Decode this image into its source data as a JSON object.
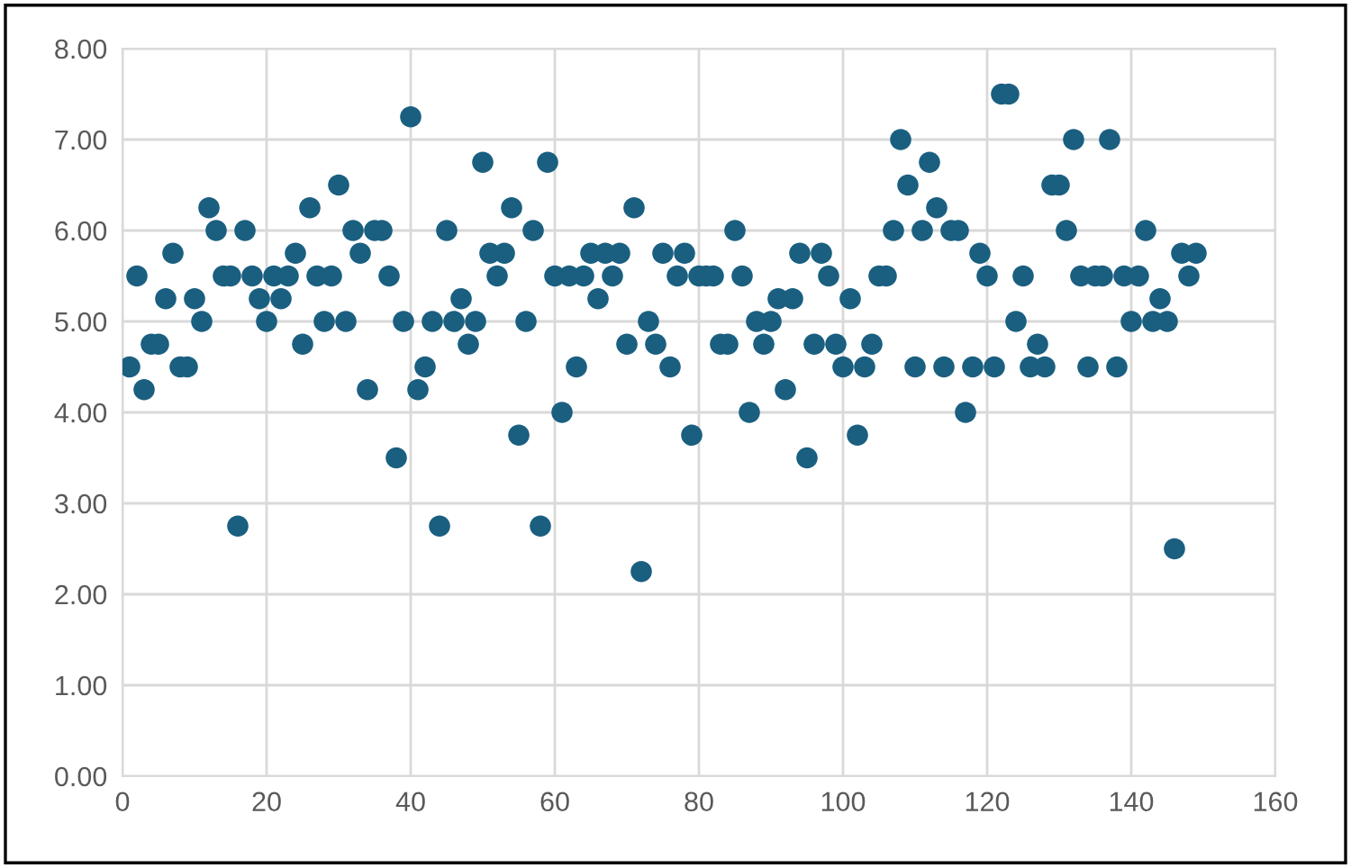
{
  "chart_data": {
    "type": "scatter",
    "x": [
      1,
      2,
      3,
      4,
      5,
      6,
      7,
      8,
      9,
      10,
      11,
      12,
      13,
      14,
      15,
      16,
      17,
      18,
      19,
      20,
      21,
      22,
      23,
      24,
      25,
      26,
      27,
      28,
      29,
      30,
      31,
      32,
      33,
      34,
      35,
      36,
      37,
      38,
      39,
      40,
      41,
      42,
      43,
      44,
      45,
      46,
      47,
      48,
      49,
      50,
      51,
      52,
      53,
      54,
      55,
      56,
      57,
      58,
      59,
      60,
      61,
      62,
      63,
      64,
      65,
      66,
      67,
      68,
      69,
      70,
      71,
      72,
      73,
      74,
      75,
      76,
      77,
      78,
      79,
      80,
      81,
      82,
      83,
      84,
      85,
      86,
      87,
      88,
      89,
      90,
      91,
      92,
      93,
      94,
      95,
      96,
      97,
      98,
      99,
      100,
      101,
      102,
      103,
      104,
      105,
      106,
      107,
      108,
      109,
      110,
      111,
      112,
      113,
      114,
      115,
      116,
      117,
      118,
      119,
      120,
      121,
      122,
      123,
      124,
      125,
      126,
      127,
      128,
      129,
      130,
      131,
      132,
      133,
      134,
      135,
      136,
      137,
      138,
      139,
      140,
      141,
      142,
      143,
      144,
      145,
      146,
      147,
      148,
      149
    ],
    "series": [
      {
        "color": "#1a5f80",
        "values": [
          4.5,
          5.5,
          4.25,
          4.75,
          4.75,
          5.25,
          5.75,
          4.5,
          4.5,
          5.25,
          5.0,
          6.25,
          6.0,
          5.5,
          5.5,
          2.75,
          6.0,
          5.5,
          5.25,
          5.0,
          5.5,
          5.25,
          5.5,
          5.75,
          4.75,
          6.25,
          5.5,
          5.0,
          5.5,
          6.5,
          5.0,
          6.0,
          5.75,
          4.25,
          6.0,
          6.0,
          5.5,
          3.5,
          5.0,
          7.25,
          4.25,
          4.5,
          5.0,
          2.75,
          6.0,
          5.0,
          5.25,
          4.75,
          5.0,
          6.75,
          5.75,
          5.5,
          5.75,
          6.25,
          3.75,
          5.0,
          6.0,
          2.75,
          6.75,
          5.5,
          4.0,
          5.5,
          4.5,
          5.5,
          5.75,
          5.25,
          5.75,
          5.5,
          5.75,
          4.75,
          6.25,
          2.25,
          5.0,
          4.75,
          5.75,
          4.5,
          5.5,
          5.75,
          3.75,
          5.5,
          5.5,
          5.5,
          4.75,
          4.75,
          6.0,
          5.5,
          4.0,
          5.0,
          4.75,
          5.0,
          5.25,
          4.25,
          5.25,
          5.75,
          3.5,
          4.75,
          5.75,
          5.5,
          4.75,
          4.5,
          5.25,
          3.75,
          4.5,
          4.75,
          5.5,
          5.5,
          6.0,
          7.0,
          6.5,
          4.5,
          6.0,
          6.75,
          6.25,
          4.5,
          6.0,
          6.0,
          4.0,
          4.5,
          5.75,
          5.5,
          4.5,
          7.5,
          7.5,
          5.0,
          5.5,
          4.5,
          4.75,
          4.5,
          6.5,
          6.5,
          6.0,
          7.0,
          5.5,
          4.5,
          5.5,
          5.5,
          7.0,
          4.5,
          5.5,
          5.0,
          5.5,
          6.0,
          5.0,
          5.25,
          5.0,
          2.5,
          5.75,
          5.5,
          5.75
        ]
      }
    ],
    "xlim": [
      0,
      160
    ],
    "xticks": [
      0,
      20,
      40,
      60,
      80,
      100,
      120,
      140,
      160
    ],
    "ylim": [
      0,
      8
    ],
    "yticks": [
      {
        "value": 0,
        "label": "0.00"
      },
      {
        "value": 1,
        "label": "1.00"
      },
      {
        "value": 2,
        "label": "2.00"
      },
      {
        "value": 3,
        "label": "3.00"
      },
      {
        "value": 4,
        "label": "4.00"
      },
      {
        "value": 5,
        "label": "5.00"
      },
      {
        "value": 6,
        "label": "6.00"
      },
      {
        "value": 7,
        "label": "7.00"
      },
      {
        "value": 8,
        "label": "8.00"
      }
    ],
    "grid": true,
    "marker": "circle"
  }
}
